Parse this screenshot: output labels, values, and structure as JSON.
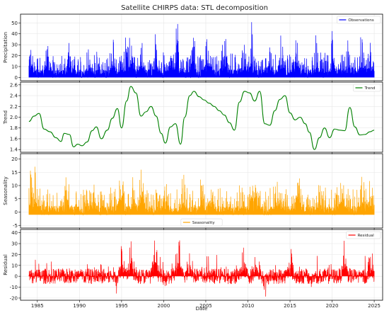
{
  "chart_data": {
    "type": "line",
    "title": "Satellite CHIRPS data: STL decomposition",
    "xlabel": "Date",
    "x_range": [
      1983.0,
      2026.0
    ],
    "x_ticks": [
      1985,
      1990,
      1995,
      2000,
      2005,
      2010,
      2015,
      2020,
      2025
    ],
    "series_x_range": [
      1984.0,
      2025.0
    ],
    "grid": true,
    "subplots": [
      {
        "key": "observations",
        "name": "Observations",
        "ylabel": "Precipitation",
        "color": "#0000ff",
        "legend_placement": "top-right",
        "ylim": [
          -3,
          58
        ],
        "y_ticks": [
          0,
          10,
          20,
          30,
          40,
          50
        ],
        "style": "spiky",
        "baseline": 0,
        "peaks": [
          [
            1984.3,
            28
          ],
          [
            1986.2,
            32
          ],
          [
            1988.6,
            36
          ],
          [
            1991.1,
            29
          ],
          [
            1994.0,
            38
          ],
          [
            1995.3,
            48
          ],
          [
            1996.0,
            53
          ],
          [
            1997.4,
            44
          ],
          [
            1999.0,
            36
          ],
          [
            2000.9,
            40
          ],
          [
            2001.6,
            56
          ],
          [
            2003.5,
            42
          ],
          [
            2005.2,
            38
          ],
          [
            2007.2,
            42
          ],
          [
            2009.4,
            36
          ],
          [
            2010.4,
            47
          ],
          [
            2012.4,
            43
          ],
          [
            2014.0,
            41
          ],
          [
            2015.8,
            36
          ],
          [
            2018.1,
            40
          ],
          [
            2020.1,
            44
          ],
          [
            2022.0,
            47
          ],
          [
            2023.5,
            37
          ],
          [
            2024.5,
            33
          ]
        ]
      },
      {
        "key": "trend",
        "name": "Trend",
        "ylabel": "Trend",
        "color": "#008000",
        "legend_placement": "top-right",
        "ylim": [
          1.35,
          2.65
        ],
        "y_ticks": [
          1.4,
          1.6,
          1.8,
          2.0,
          2.2,
          2.4,
          2.6
        ],
        "style": "smooth",
        "x": [
          1984.0,
          1984.6,
          1985.2,
          1985.8,
          1986.5,
          1987.2,
          1987.8,
          1988.2,
          1988.8,
          1989.3,
          1989.8,
          1990.3,
          1990.9,
          1991.5,
          1992.0,
          1992.6,
          1993.3,
          1993.9,
          1994.5,
          1995.0,
          1995.6,
          1996.1,
          1996.7,
          1997.3,
          1997.9,
          1998.5,
          1999.1,
          1999.7,
          2000.2,
          2000.8,
          2001.4,
          2002.0,
          2002.5,
          2003.1,
          2003.6,
          2004.2,
          2004.8,
          2005.4,
          2006.0,
          2006.6,
          2007.2,
          2007.8,
          2008.4,
          2009.0,
          2009.6,
          2010.2,
          2010.8,
          2011.4,
          2012.0,
          2012.6,
          2013.2,
          2013.8,
          2014.4,
          2015.0,
          2015.6,
          2016.2,
          2016.8,
          2017.3,
          2017.9,
          2018.5,
          2019.1,
          2019.7,
          2020.3,
          2020.9,
          2021.5,
          2022.1,
          2022.7,
          2023.3,
          2023.9,
          2024.5,
          2025.0
        ],
        "values": [
          1.92,
          2.02,
          2.07,
          1.78,
          1.73,
          1.62,
          1.55,
          1.7,
          1.68,
          1.45,
          1.5,
          1.47,
          1.54,
          1.75,
          1.82,
          1.6,
          1.76,
          1.98,
          2.16,
          1.8,
          2.3,
          2.57,
          2.45,
          2.02,
          2.1,
          2.2,
          2.02,
          1.7,
          1.52,
          1.82,
          1.88,
          1.5,
          2.0,
          2.4,
          2.48,
          2.38,
          2.32,
          2.26,
          2.2,
          2.12,
          2.04,
          1.9,
          1.76,
          2.28,
          2.48,
          2.45,
          2.3,
          2.48,
          1.88,
          1.85,
          2.12,
          2.33,
          2.4,
          2.08,
          1.95,
          2.0,
          1.88,
          1.72,
          1.4,
          1.62,
          1.8,
          1.62,
          1.78,
          1.76,
          1.75,
          2.18,
          1.82,
          1.67,
          1.68,
          1.73,
          1.76
        ]
      },
      {
        "key": "seasonality",
        "name": "Seasonality",
        "ylabel": "Seasonality",
        "color": "#ffa500",
        "legend_placement": "bottom-center",
        "ylim": [
          -6,
          22
        ],
        "y_ticks": [
          -5,
          0,
          5,
          10,
          15,
          20
        ],
        "style": "spiky",
        "baseline": -1,
        "peaks": [
          [
            1984.2,
            18
          ],
          [
            1984.6,
            20
          ],
          [
            1988.5,
            15
          ],
          [
            1991.6,
            14
          ],
          [
            1995.0,
            16
          ],
          [
            1996.5,
            14
          ],
          [
            1997.3,
            17
          ],
          [
            2000.3,
            15
          ],
          [
            2002.3,
            14
          ],
          [
            2004.5,
            14
          ],
          [
            2005.8,
            15
          ],
          [
            2010.8,
            15
          ],
          [
            2013.4,
            14
          ],
          [
            2016.0,
            14
          ],
          [
            2018.6,
            14
          ],
          [
            2021.2,
            14
          ],
          [
            2023.6,
            14
          ],
          [
            2024.5,
            20
          ]
        ]
      },
      {
        "key": "residual",
        "name": "Residual",
        "ylabel": "Residual",
        "color": "#ff0000",
        "legend_placement": "top-right",
        "ylim": [
          -22,
          43
        ],
        "y_ticks": [
          -20,
          -10,
          0,
          10,
          20,
          30,
          40
        ],
        "style": "noisy",
        "baseline": 0,
        "peaks": [
          [
            1995.0,
            34
          ],
          [
            1996.1,
            37
          ],
          [
            1999.0,
            33
          ],
          [
            2001.7,
            40
          ],
          [
            2003.1,
            30
          ],
          [
            2009.5,
            32
          ],
          [
            2011.0,
            28
          ],
          [
            2015.0,
            30
          ],
          [
            2021.5,
            35
          ],
          [
            2024.6,
            29
          ]
        ],
        "troughs": [
          [
            2012.0,
            -18
          ],
          [
            2000.2,
            -12
          ],
          [
            1994.4,
            -10
          ],
          [
            2017.5,
            -11
          ]
        ]
      }
    ]
  }
}
